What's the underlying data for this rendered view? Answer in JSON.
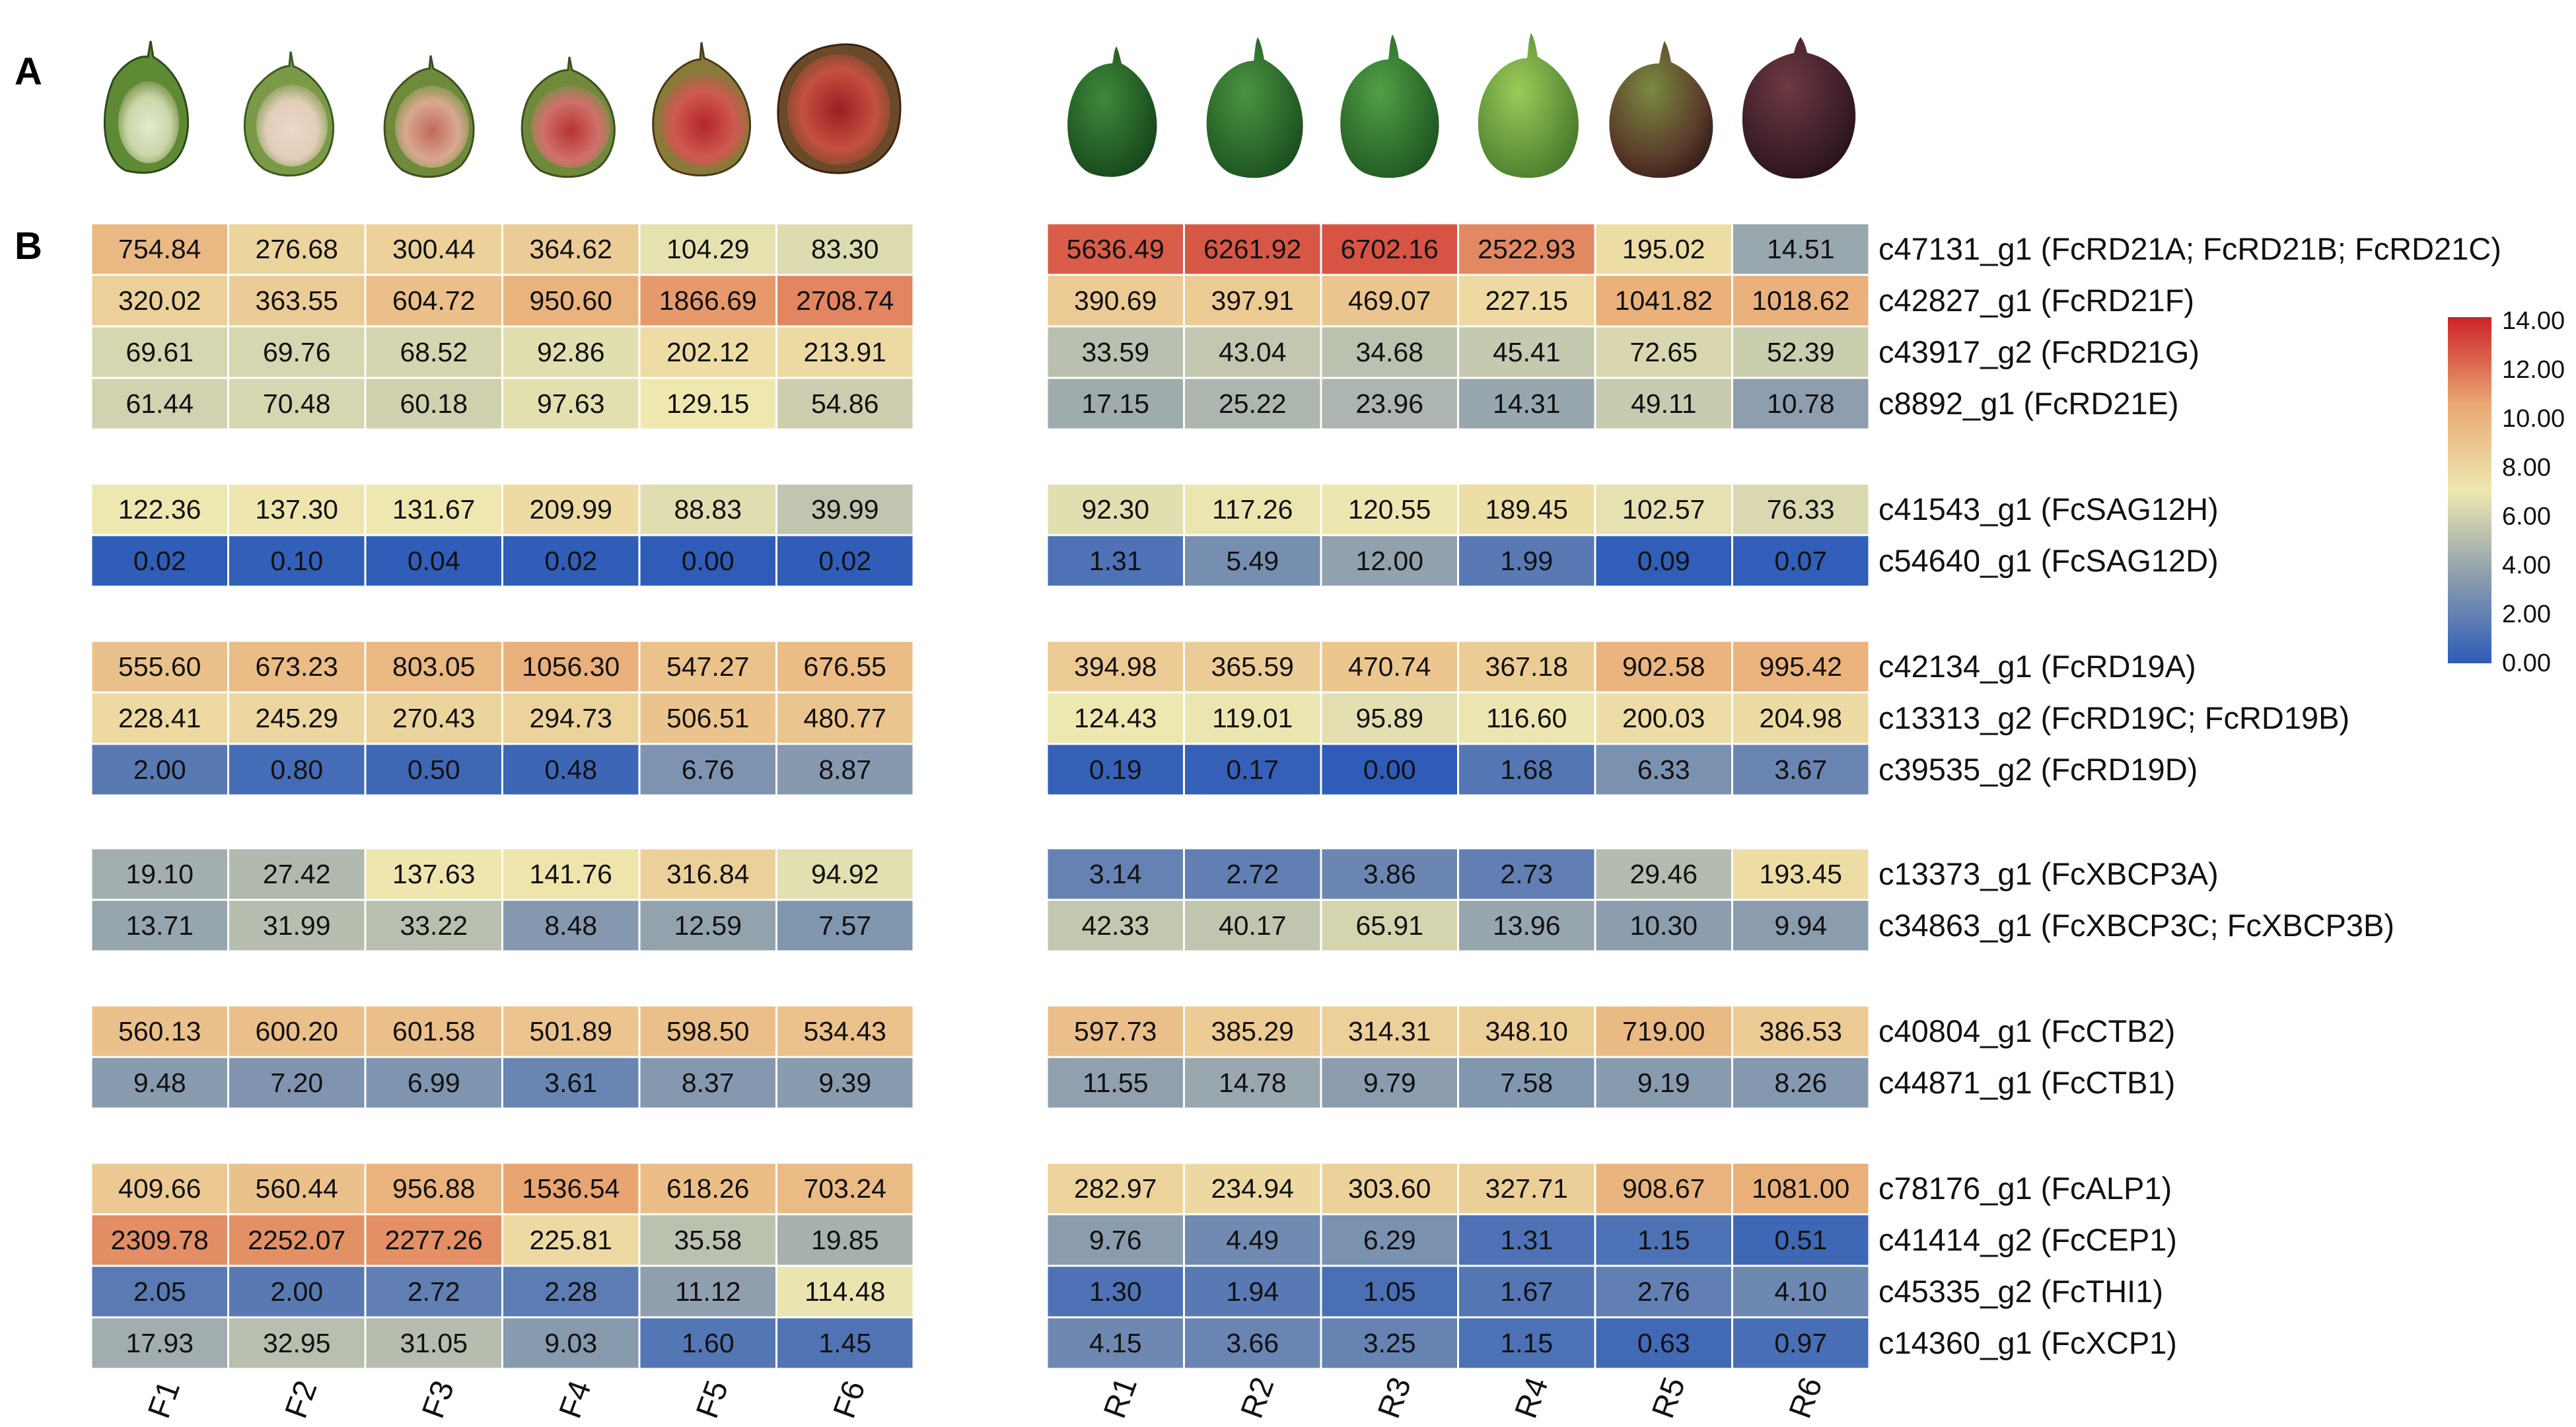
{
  "panel_labels": {
    "a": "A",
    "b": "B"
  },
  "chart_data": {
    "type": "heatmap",
    "title": "",
    "color_scale": {
      "min": 0.0,
      "max": 14.0,
      "ticks": [
        "14.00",
        "12.00",
        "10.00",
        "8.00",
        "6.00",
        "4.00",
        "2.00",
        "0.00"
      ],
      "stops": [
        "#2e5cb8",
        "#8c9dae",
        "#eee8b0",
        "#e9a873",
        "#cc2228"
      ]
    },
    "fig_photos": {
      "interior": [
        "F1",
        "F2",
        "F3",
        "F4",
        "F5",
        "F6"
      ],
      "exterior": [
        "R1",
        "R2",
        "R3",
        "R4",
        "R5",
        "R6"
      ]
    },
    "left_columns": [
      "F1",
      "F2",
      "F3",
      "F4",
      "F5",
      "F6"
    ],
    "right_columns": [
      "R1",
      "R2",
      "R3",
      "R4",
      "R5",
      "R6"
    ],
    "groups": [
      {
        "rows": [
          {
            "gene": "c47131_g1 (FcRD21A; FcRD21B; FcRD21C)",
            "F": [
              "754.84",
              "276.68",
              "300.44",
              "364.62",
              "104.29",
              "83.30"
            ],
            "R": [
              "5636.49",
              "6261.92",
              "6702.16",
              "2522.93",
              "195.02",
              "14.51"
            ]
          },
          {
            "gene": "c42827_g1 (FcRD21F)",
            "F": [
              "320.02",
              "363.55",
              "604.72",
              "950.60",
              "1866.69",
              "2708.74"
            ],
            "R": [
              "390.69",
              "397.91",
              "469.07",
              "227.15",
              "1041.82",
              "1018.62"
            ]
          },
          {
            "gene": "c43917_g2 (FcRD21G)",
            "F": [
              "69.61",
              "69.76",
              "68.52",
              "92.86",
              "202.12",
              "213.91"
            ],
            "R": [
              "33.59",
              "43.04",
              "34.68",
              "45.41",
              "72.65",
              "52.39"
            ]
          },
          {
            "gene": "c8892_g1 (FcRD21E)",
            "F": [
              "61.44",
              "70.48",
              "60.18",
              "97.63",
              "129.15",
              "54.86"
            ],
            "R": [
              "17.15",
              "25.22",
              "23.96",
              "14.31",
              "49.11",
              "10.78"
            ]
          }
        ]
      },
      {
        "rows": [
          {
            "gene": "c41543_g1 (FcSAG12H)",
            "F": [
              "122.36",
              "137.30",
              "131.67",
              "209.99",
              "88.83",
              "39.99"
            ],
            "R": [
              "92.30",
              "117.26",
              "120.55",
              "189.45",
              "102.57",
              "76.33"
            ]
          },
          {
            "gene": "c54640_g1 (FcSAG12D)",
            "F": [
              "0.02",
              "0.10",
              "0.04",
              "0.02",
              "0.00",
              "0.02"
            ],
            "R": [
              "1.31",
              "5.49",
              "12.00",
              "1.99",
              "0.09",
              "0.07"
            ]
          }
        ]
      },
      {
        "rows": [
          {
            "gene": "c42134_g1 (FcRD19A)",
            "F": [
              "555.60",
              "673.23",
              "803.05",
              "1056.30",
              "547.27",
              "676.55"
            ],
            "R": [
              "394.98",
              "365.59",
              "470.74",
              "367.18",
              "902.58",
              "995.42"
            ]
          },
          {
            "gene": "c13313_g2 (FcRD19C; FcRD19B)",
            "F": [
              "228.41",
              "245.29",
              "270.43",
              "294.73",
              "506.51",
              "480.77"
            ],
            "R": [
              "124.43",
              "119.01",
              "95.89",
              "116.60",
              "200.03",
              "204.98"
            ]
          },
          {
            "gene": "c39535_g2 (FcRD19D)",
            "F": [
              "2.00",
              "0.80",
              "0.50",
              "0.48",
              "6.76",
              "8.87"
            ],
            "R": [
              "0.19",
              "0.17",
              "0.00",
              "1.68",
              "6.33",
              "3.67"
            ]
          }
        ]
      },
      {
        "rows": [
          {
            "gene": "c13373_g1 (FcXBCP3A)",
            "F": [
              "19.10",
              "27.42",
              "137.63",
              "141.76",
              "316.84",
              "94.92"
            ],
            "R": [
              "3.14",
              "2.72",
              "3.86",
              "2.73",
              "29.46",
              "193.45"
            ]
          },
          {
            "gene": "c34863_g1 (FcXBCP3C; FcXBCP3B)",
            "F": [
              "13.71",
              "31.99",
              "33.22",
              "8.48",
              "12.59",
              "7.57"
            ],
            "R": [
              "42.33",
              "40.17",
              "65.91",
              "13.96",
              "10.30",
              "9.94"
            ]
          }
        ]
      },
      {
        "rows": [
          {
            "gene": "c40804_g1 (FcCTB2)",
            "F": [
              "560.13",
              "600.20",
              "601.58",
              "501.89",
              "598.50",
              "534.43"
            ],
            "R": [
              "597.73",
              "385.29",
              "314.31",
              "348.10",
              "719.00",
              "386.53"
            ]
          },
          {
            "gene": "c44871_g1 (FcCTB1)",
            "F": [
              "9.48",
              "7.20",
              "6.99",
              "3.61",
              "8.37",
              "9.39"
            ],
            "R": [
              "11.55",
              "14.78",
              "9.79",
              "7.58",
              "9.19",
              "8.26"
            ]
          }
        ]
      },
      {
        "rows": [
          {
            "gene": "c78176_g1 (FcALP1)",
            "F": [
              "409.66",
              "560.44",
              "956.88",
              "1536.54",
              "618.26",
              "703.24"
            ],
            "R": [
              "282.97",
              "234.94",
              "303.60",
              "327.71",
              "908.67",
              "1081.00"
            ]
          },
          {
            "gene": "c41414_g2 (FcCEP1)",
            "F": [
              "2309.78",
              "2252.07",
              "2277.26",
              "225.81",
              "35.58",
              "19.85"
            ],
            "R": [
              "9.76",
              "4.49",
              "6.29",
              "1.31",
              "1.15",
              "0.51"
            ]
          },
          {
            "gene": "c45335_g2 (FcTHI1)",
            "F": [
              "2.05",
              "2.00",
              "2.72",
              "2.28",
              "11.12",
              "114.48"
            ],
            "R": [
              "1.30",
              "1.94",
              "1.05",
              "1.67",
              "2.76",
              "4.10"
            ]
          },
          {
            "gene": "c14360_g1 (FcXCP1)",
            "F": [
              "17.93",
              "32.95",
              "31.05",
              "9.03",
              "1.60",
              "1.45"
            ],
            "R": [
              "4.15",
              "3.66",
              "3.25",
              "1.15",
              "0.63",
              "0.97"
            ]
          }
        ]
      }
    ]
  }
}
